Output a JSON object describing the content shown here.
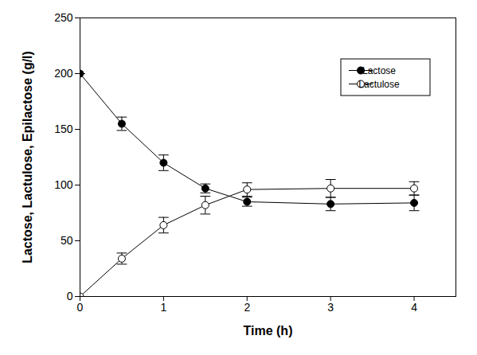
{
  "chart_data": {
    "type": "line",
    "x_label": "Time (h)",
    "y_label": "Lactose, Lactulose, Epilactose (g/l)",
    "x": [
      0,
      0.5,
      1,
      1.5,
      2,
      3,
      4
    ],
    "series": [
      {
        "name": "Lactose",
        "color": "#000000",
        "marker": "circle",
        "values": [
          200,
          155,
          120,
          97,
          85,
          83,
          84
        ],
        "error": [
          0,
          6,
          7,
          4,
          4,
          6,
          7
        ]
      },
      {
        "name": "Lactulose",
        "color": "#000000",
        "marker": "open_circle",
        "values": [
          0,
          34,
          64,
          82,
          96,
          97,
          97
        ],
        "error": [
          0,
          5,
          7,
          8,
          6,
          8,
          6
        ]
      }
    ],
    "xlim": [
      0,
      4.5
    ],
    "xticks": [
      0,
      1,
      2,
      3,
      4
    ],
    "ylim": [
      0,
      250
    ],
    "yticks": [
      0,
      50,
      100,
      150,
      200,
      250
    ],
    "grid": false,
    "legend": "top-right"
  }
}
